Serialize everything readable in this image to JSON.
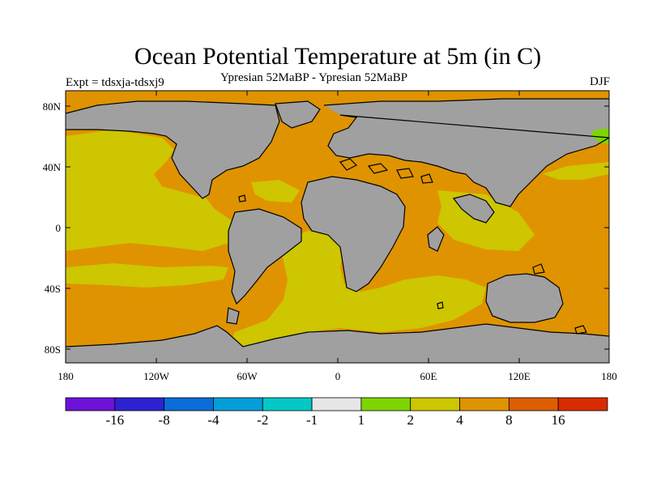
{
  "title": "Ocean Potential Temperature at 5m (in C)",
  "subtitle_left": "Expt = tdsxja-tdsxj9",
  "subtitle_center": "Ypresian  52MaBP - Ypresian  52MaBP",
  "subtitle_right": "DJF",
  "map": {
    "lat_ticks": [
      "80N",
      "40N",
      "0",
      "40S",
      "80S"
    ],
    "lon_ticks": [
      "180",
      "120W",
      "60W",
      "0",
      "60E",
      "120E",
      "180"
    ],
    "colors": {
      "land": "#a0a0a0",
      "ocean_2_4": "#cdc600",
      "ocean_4_8": "#df9300",
      "ocean_1_2": "#7fd500",
      "coast": "#000000"
    }
  },
  "colorbar": {
    "colors": [
      "#6e11d8",
      "#2c22d2",
      "#0a6dd8",
      "#049fd8",
      "#04c8c8",
      "#e6e6e6",
      "#7fd500",
      "#cdc600",
      "#df9300",
      "#dd5e00",
      "#d82c00"
    ],
    "labels": [
      "-16",
      "-8",
      "-4",
      "-2",
      "-1",
      "1",
      "2",
      "4",
      "8",
      "16"
    ]
  }
}
